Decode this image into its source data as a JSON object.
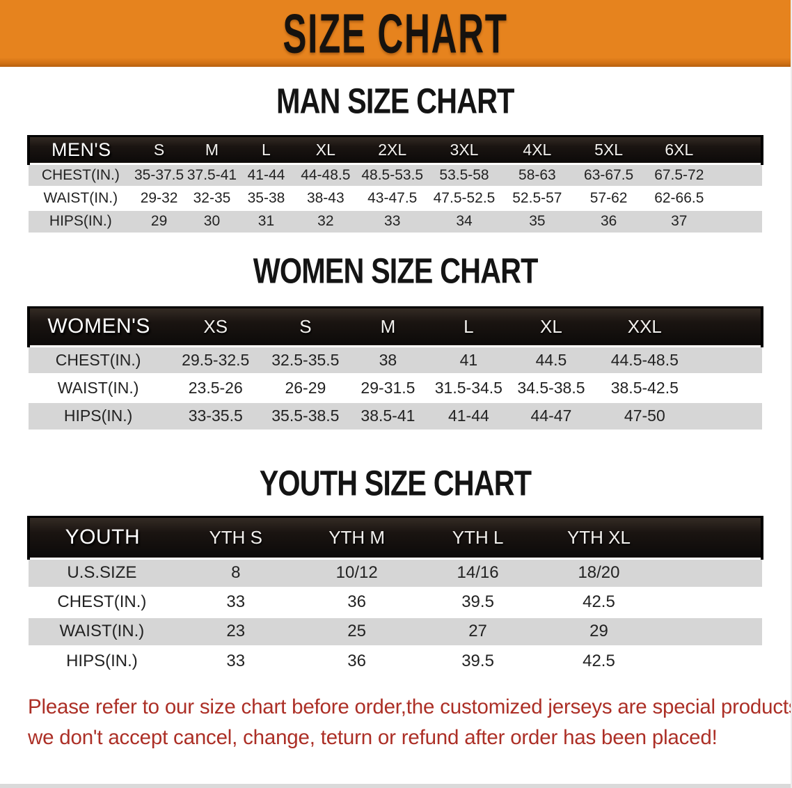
{
  "banner": {
    "title": "SIZE CHART"
  },
  "colors": {
    "banner_bg": "#E6831E",
    "banner_edge": "#B75F0E",
    "header_bar": "#17120F",
    "row_shaded": "#D6D6D6",
    "cell_text": "#222222",
    "title_text": "#141414",
    "footer_red": "#AC2F26"
  },
  "sections": [
    {
      "title": "MAN SIZE CHART",
      "table": {
        "label": "MEN'S",
        "columns": [
          "S",
          "M",
          "L",
          "XL",
          "2XL",
          "3XL",
          "4XL",
          "5XL",
          "6XL"
        ],
        "rows": [
          {
            "label": "CHEST(IN.)",
            "values": [
              "35-37.5",
              "37.5-41",
              "41-44",
              "44-48.5",
              "48.5-53.5",
              "53.5-58",
              "58-63",
              "63-67.5",
              "67.5-72"
            ]
          },
          {
            "label": "WAIST(IN.)",
            "values": [
              "29-32",
              "32-35",
              "35-38",
              "38-43",
              "43-47.5",
              "47.5-52.5",
              "52.5-57",
              "57-62",
              "62-66.5"
            ]
          },
          {
            "label": "HIPS(IN.)",
            "values": [
              "29",
              "30",
              "31",
              "32",
              "33",
              "34",
              "35",
              "36",
              "37"
            ]
          }
        ]
      }
    },
    {
      "title": "WOMEN SIZE CHART",
      "table": {
        "label": "WOMEN'S",
        "columns": [
          "XS",
          "S",
          "M",
          "L",
          "XL",
          "XXL"
        ],
        "rows": [
          {
            "label": "CHEST(IN.)",
            "values": [
              "29.5-32.5",
              "32.5-35.5",
              "38",
              "41",
              "44.5",
              "44.5-48.5"
            ]
          },
          {
            "label": "WAIST(IN.)",
            "values": [
              "23.5-26",
              "26-29",
              "29-31.5",
              "31.5-34.5",
              "34.5-38.5",
              "38.5-42.5"
            ]
          },
          {
            "label": "HIPS(IN.)",
            "values": [
              "33-35.5",
              "35.5-38.5",
              "38.5-41",
              "41-44",
              "44-47",
              "47-50"
            ]
          }
        ]
      }
    },
    {
      "title": "YOUTH SIZE CHART",
      "table": {
        "label": "YOUTH",
        "columns": [
          "YTH S",
          "YTH M",
          "YTH L",
          "YTH XL"
        ],
        "rows": [
          {
            "label": "U.S.SIZE",
            "values": [
              "8",
              "10/12",
              "14/16",
              "18/20"
            ]
          },
          {
            "label": "CHEST(IN.)",
            "values": [
              "33",
              "36",
              "39.5",
              "42.5"
            ]
          },
          {
            "label": "WAIST(IN.)",
            "values": [
              "23",
              "25",
              "27",
              "29"
            ]
          },
          {
            "label": "HIPS(IN.)",
            "values": [
              "33",
              "36",
              "39.5",
              "42.5"
            ]
          }
        ]
      }
    }
  ],
  "footer": {
    "lines": [
      "Please refer to our size chart before order,the customized jerseys are special products,",
      "we don't accept cancel, change, teturn or refund after order has been placed!"
    ]
  }
}
